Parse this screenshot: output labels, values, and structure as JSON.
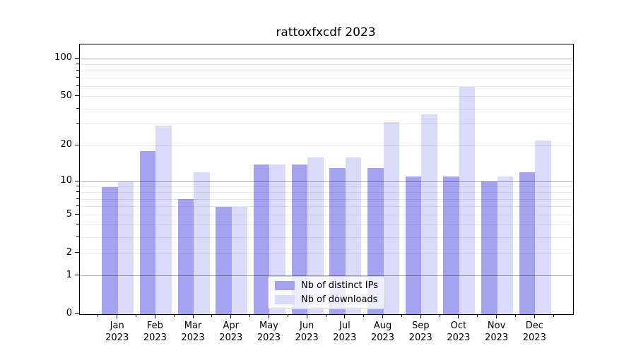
{
  "title": "rattoxfxcdf 2023",
  "chart_data": {
    "type": "bar",
    "title": "rattoxfxcdf 2023",
    "categories": [
      "Jan 2023",
      "Feb 2023",
      "Mar 2023",
      "Apr 2023",
      "May 2023",
      "Jun 2023",
      "Jul 2023",
      "Aug 2023",
      "Sep 2023",
      "Oct 2023",
      "Nov 2023",
      "Dec 2023"
    ],
    "months": [
      "Jan",
      "Feb",
      "Mar",
      "Apr",
      "May",
      "Jun",
      "Jul",
      "Aug",
      "Sep",
      "Oct",
      "Nov",
      "Dec"
    ],
    "year": "2023",
    "series": [
      {
        "name": "Nb of distinct IPs",
        "color": "#a3a3ef",
        "values": [
          9,
          18,
          7,
          6,
          14,
          14,
          13,
          13,
          11,
          11,
          10,
          12
        ]
      },
      {
        "name": "Nb of downloads",
        "color": "#dadaf9",
        "values": [
          10,
          29,
          12,
          6,
          14,
          16,
          16,
          31,
          36,
          60,
          11,
          22
        ]
      }
    ],
    "yscale": "log1p",
    "ylim": [
      0,
      130
    ],
    "yticks": [
      0,
      1,
      2,
      5,
      10,
      20,
      50,
      100
    ],
    "ytick_labels": [
      "0",
      "1",
      "2",
      "5",
      "10",
      "20",
      "50",
      "100"
    ],
    "major_grid_values": [
      1,
      10,
      100
    ],
    "minor_grid_values": [
      2,
      3,
      4,
      5,
      6,
      7,
      8,
      9,
      20,
      30,
      40,
      50,
      60,
      70,
      80,
      90
    ],
    "minor_ytick_values": [
      3,
      4,
      6,
      7,
      8,
      9,
      30,
      40,
      60,
      70,
      80,
      90
    ],
    "xlabel": "",
    "ylabel": "",
    "grid": true,
    "legend_position": "lower center"
  },
  "colors": {
    "background": "#ffffff",
    "bar_distinct_ips": "#a3a3ef",
    "bar_downloads": "#dadaf9",
    "major_grid": "#b0b0b0",
    "minor_grid": "#e8e8e8",
    "axis": "#000000",
    "legend_border": "#cccccc"
  }
}
